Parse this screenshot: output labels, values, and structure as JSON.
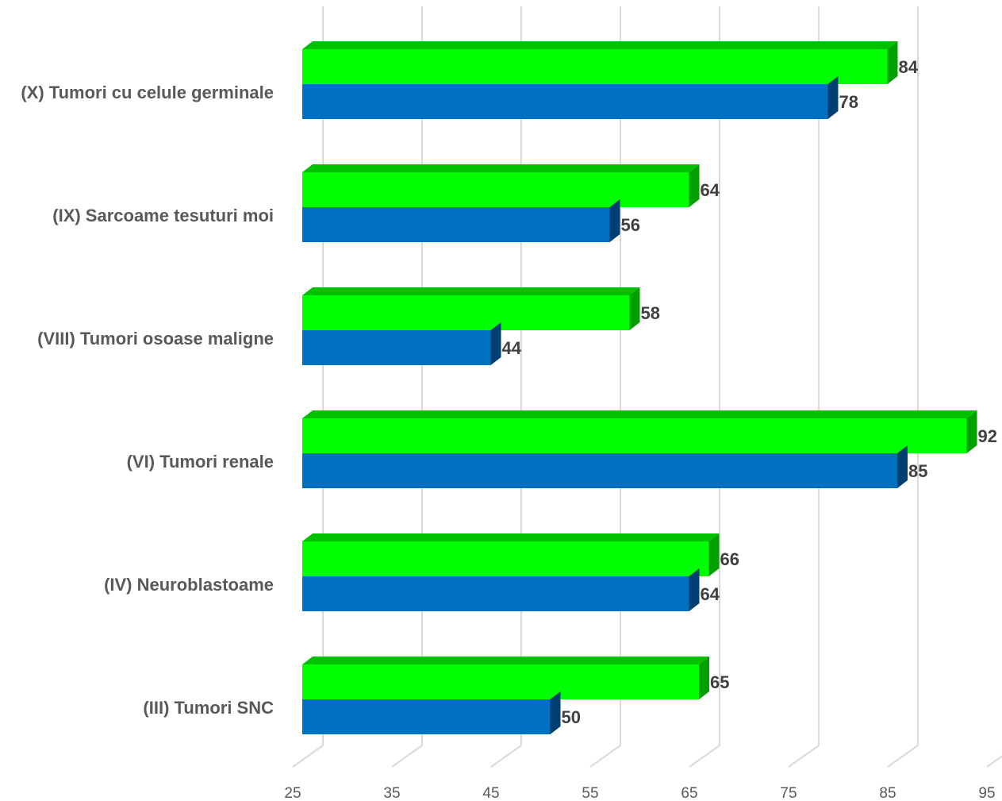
{
  "chart_data": {
    "type": "bar",
    "orientation": "horizontal",
    "style": "3d",
    "categories": [
      "(X) Tumori cu celule germinale",
      "(IX) Sarcoame  tesuturi moi",
      "(VIII) Tumori osoase maligne",
      "(VI) Tumori renale",
      "(IV) Neuroblastoame",
      "(III) Tumori SNC"
    ],
    "series": [
      {
        "values": [
          84,
          64,
          58,
          92,
          66,
          65
        ],
        "color": "#00ff00",
        "side_color": "#00a000",
        "top_color": "#00c000"
      },
      {
        "values": [
          78,
          56,
          44,
          85,
          64,
          50
        ],
        "color": "#0070c0",
        "side_color": "#003f73",
        "top_color": "#0070c0"
      }
    ],
    "x_ticks": [
      25,
      35,
      45,
      55,
      65,
      75,
      85,
      95
    ],
    "xlim": [
      25,
      95
    ],
    "grid": "vertical",
    "legend": "none"
  }
}
